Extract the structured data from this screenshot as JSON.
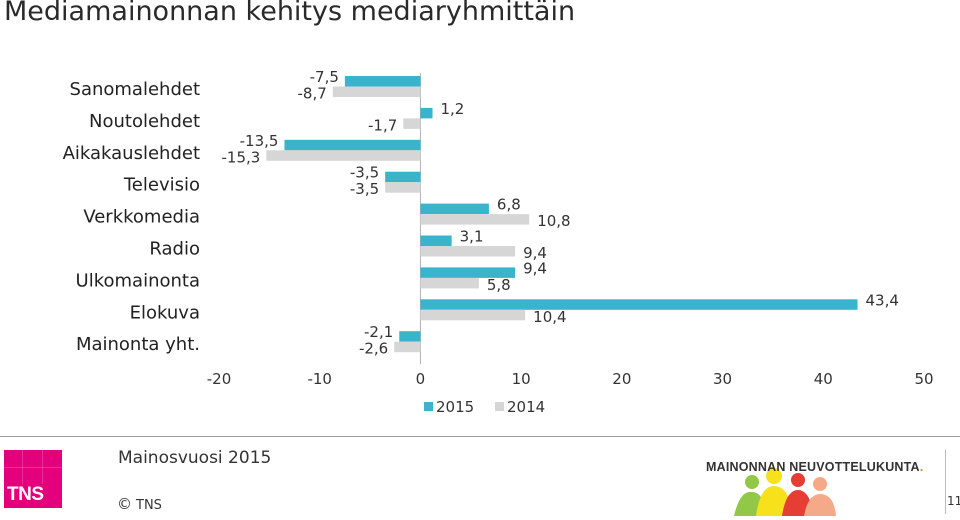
{
  "title": "Mediamainonnan kehitys mediaryhmittäin",
  "chart_data": {
    "type": "bar",
    "orientation": "horizontal",
    "categories": [
      "Sanomalehdet",
      "Noutolehdet",
      "Aikakauslehdet",
      "Televisio",
      "Verkkomedia",
      "Radio",
      "Ulkomainonta",
      "Elokuva",
      "Mainonta yht."
    ],
    "series": [
      {
        "name": "2015",
        "color": "#3ab4cc",
        "values": [
          -7.5,
          1.2,
          -13.5,
          -3.5,
          6.8,
          3.1,
          9.4,
          43.4,
          -2.1
        ],
        "labels": [
          "-7,5",
          "1,2",
          "-13,5",
          "-3,5",
          "6,8",
          "3,1",
          "9,4",
          "43,4",
          "-2,1"
        ]
      },
      {
        "name": "2014",
        "color": "#d6d6d6",
        "values": [
          -8.7,
          -1.7,
          -15.3,
          -3.5,
          10.8,
          9.4,
          5.8,
          10.4,
          -2.6
        ],
        "labels": [
          "-8,7",
          "-1,7",
          "-15,3",
          "-3,5",
          "10,8",
          "9,4",
          "5,8",
          "10,4",
          "-2,6"
        ]
      }
    ],
    "xlim": [
      -20,
      50
    ],
    "xticks": [
      -20,
      -10,
      0,
      10,
      20,
      30,
      40,
      50
    ],
    "legend": {
      "placement": "bottom",
      "entries": [
        "2015",
        "2014"
      ]
    },
    "grid": false
  },
  "footer": {
    "text": "Mainosvuosi 2015",
    "copyright": "TNS",
    "tns_logo": "TNS",
    "partner_logo": "MAINONNAN NEUVOTTELUKUNTA",
    "page_number": "11"
  }
}
